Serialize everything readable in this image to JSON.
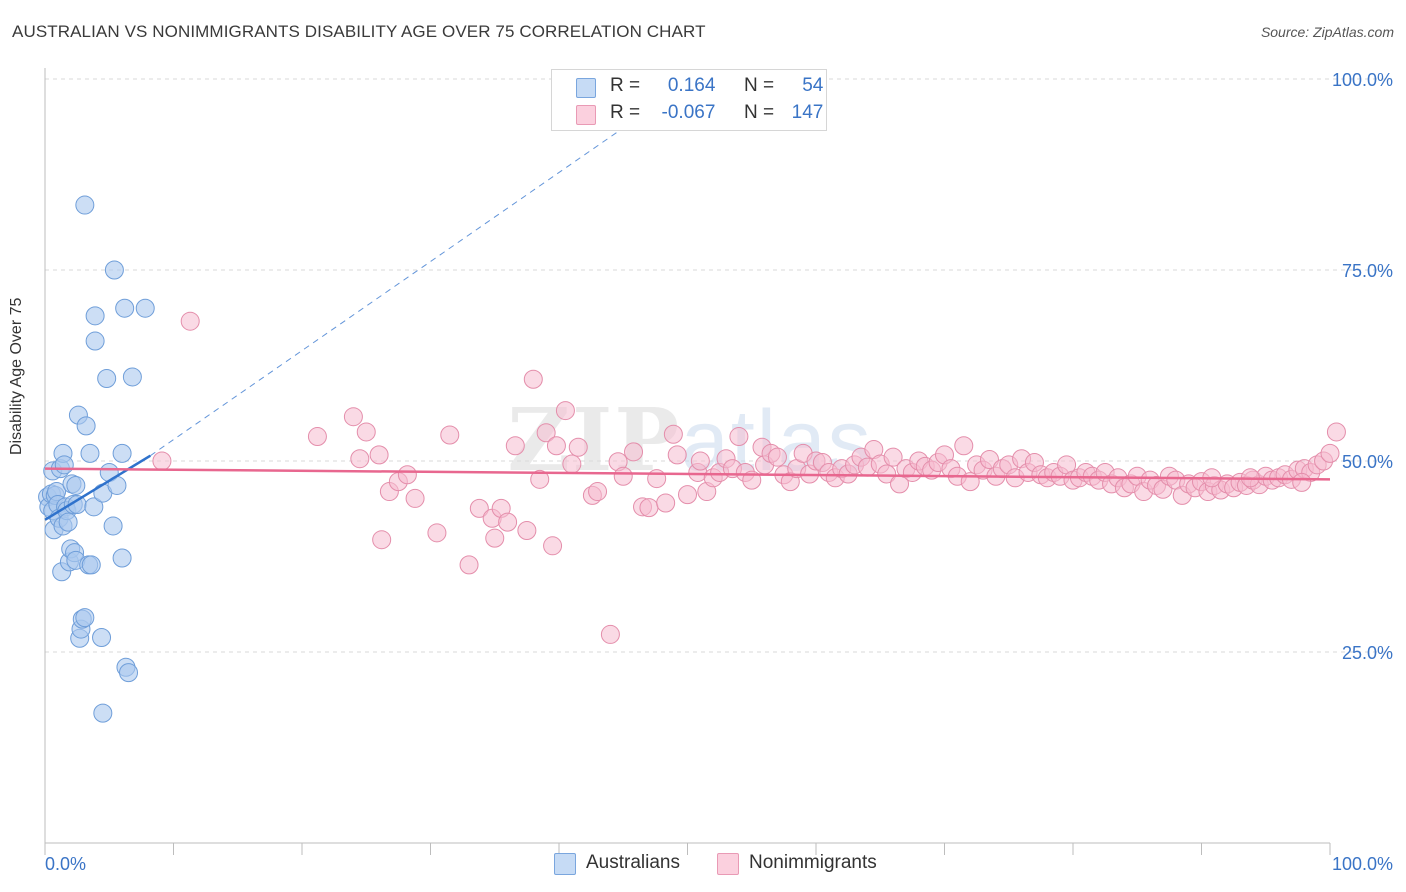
{
  "title": "AUSTRALIAN VS NONIMMIGRANTS DISABILITY AGE OVER 75 CORRELATION CHART",
  "source": "Source: ZipAtlas.com",
  "legend": {
    "rows": [
      {
        "r_label": "R =",
        "r_value": "0.164",
        "n_label": "N =",
        "n_value": "54"
      },
      {
        "r_label": "R =",
        "r_value": "-0.067",
        "n_label": "N =",
        "n_value": "147"
      }
    ]
  },
  "bottom_legend": [
    "Australians",
    "Nonimmigrants"
  ],
  "colors": {
    "blue_fill": "#aac8ef",
    "blue_stroke": "#6f9ed9",
    "blue_line": "#2f72cc",
    "pink_fill": "#f6bcd0",
    "pink_stroke": "#e48eab",
    "pink_line": "#e8678f",
    "tick_text": "#3a74c6"
  },
  "chart_data": {
    "type": "scatter",
    "title": "AUSTRALIAN VS NONIMMIGRANTS DISABILITY AGE OVER 75 CORRELATION CHART",
    "xlabel": "",
    "ylabel": "Disability Age Over 75",
    "xlim": [
      0,
      100
    ],
    "ylim": [
      0,
      100
    ],
    "x_tick_labels": [
      "0.0%",
      "100.0%"
    ],
    "y_tick_labels": [
      "25.0%",
      "50.0%",
      "75.0%",
      "100.0%"
    ],
    "y_ticks": [
      25,
      50,
      75,
      100
    ],
    "grid": "dashed horizontal",
    "watermark": "ZIPatlas",
    "series": [
      {
        "name": "Australians",
        "color": "#aac8ef",
        "trend": {
          "x": [
            0,
            8.2
          ],
          "y": [
            42.3,
            50.7
          ],
          "extended_dashed_to": [
            50.5,
            100
          ]
        },
        "points": [
          [
            0.2,
            45.3
          ],
          [
            0.3,
            44.0
          ],
          [
            0.5,
            45.7
          ],
          [
            0.6,
            48.7
          ],
          [
            0.6,
            43.5
          ],
          [
            0.7,
            41.0
          ],
          [
            0.8,
            45.5
          ],
          [
            0.9,
            46.0
          ],
          [
            1.0,
            44.3
          ],
          [
            1.1,
            42.5
          ],
          [
            1.2,
            49.0
          ],
          [
            1.3,
            35.5
          ],
          [
            1.4,
            51.0
          ],
          [
            1.4,
            41.5
          ],
          [
            1.5,
            49.5
          ],
          [
            1.6,
            44.0
          ],
          [
            1.7,
            43.5
          ],
          [
            1.8,
            42.0
          ],
          [
            1.9,
            36.8
          ],
          [
            2.0,
            38.5
          ],
          [
            2.1,
            47.0
          ],
          [
            2.2,
            44.3
          ],
          [
            2.3,
            38.0
          ],
          [
            2.4,
            46.8
          ],
          [
            2.4,
            37.0
          ],
          [
            2.5,
            44.3
          ],
          [
            2.6,
            56.0
          ],
          [
            2.7,
            26.8
          ],
          [
            2.8,
            28.0
          ],
          [
            2.9,
            29.3
          ],
          [
            3.1,
            29.5
          ],
          [
            3.1,
            83.5
          ],
          [
            3.2,
            54.6
          ],
          [
            3.4,
            36.4
          ],
          [
            3.5,
            51.0
          ],
          [
            3.6,
            36.4
          ],
          [
            3.8,
            44.0
          ],
          [
            3.9,
            69.0
          ],
          [
            3.9,
            65.7
          ],
          [
            4.4,
            26.9
          ],
          [
            4.5,
            45.8
          ],
          [
            4.5,
            17.0
          ],
          [
            4.8,
            60.8
          ],
          [
            5.0,
            48.5
          ],
          [
            5.3,
            41.5
          ],
          [
            5.4,
            75.0
          ],
          [
            5.6,
            46.8
          ],
          [
            6.0,
            51.0
          ],
          [
            6.0,
            37.3
          ],
          [
            6.2,
            70.0
          ],
          [
            6.3,
            23.0
          ],
          [
            6.5,
            22.3
          ],
          [
            6.8,
            61.0
          ],
          [
            7.8,
            70.0
          ]
        ]
      },
      {
        "name": "Nonimmigrants",
        "color": "#f6bcd0",
        "trend": {
          "x": [
            0,
            100
          ],
          "y": [
            49.0,
            47.6
          ]
        },
        "points": [
          [
            9.1,
            50.0
          ],
          [
            11.3,
            68.3
          ],
          [
            21.2,
            53.2
          ],
          [
            24.0,
            55.8
          ],
          [
            24.5,
            50.3
          ],
          [
            25.0,
            53.8
          ],
          [
            26.0,
            50.8
          ],
          [
            26.2,
            39.7
          ],
          [
            26.8,
            46.0
          ],
          [
            27.5,
            47.3
          ],
          [
            28.2,
            48.2
          ],
          [
            28.8,
            45.1
          ],
          [
            30.5,
            40.6
          ],
          [
            31.5,
            53.4
          ],
          [
            33.0,
            36.4
          ],
          [
            33.8,
            43.8
          ],
          [
            34.8,
            42.5
          ],
          [
            35.0,
            39.9
          ],
          [
            35.5,
            43.8
          ],
          [
            36.0,
            42.0
          ],
          [
            36.6,
            52.0
          ],
          [
            37.5,
            40.9
          ],
          [
            38.0,
            60.7
          ],
          [
            38.5,
            47.6
          ],
          [
            39.0,
            53.7
          ],
          [
            39.5,
            38.9
          ],
          [
            39.8,
            52.0
          ],
          [
            40.5,
            56.6
          ],
          [
            41.0,
            49.6
          ],
          [
            41.5,
            51.8
          ],
          [
            42.6,
            45.5
          ],
          [
            43.0,
            46.0
          ],
          [
            44.0,
            27.3
          ],
          [
            44.6,
            49.9
          ],
          [
            45.0,
            48.0
          ],
          [
            45.8,
            51.2
          ],
          [
            46.5,
            44.0
          ],
          [
            47.0,
            43.9
          ],
          [
            47.6,
            47.7
          ],
          [
            48.3,
            44.5
          ],
          [
            48.9,
            53.5
          ],
          [
            49.2,
            50.8
          ],
          [
            50.0,
            45.6
          ],
          [
            50.8,
            48.5
          ],
          [
            51.0,
            50.0
          ],
          [
            51.5,
            46.0
          ],
          [
            52.0,
            47.8
          ],
          [
            52.5,
            48.5
          ],
          [
            53.0,
            50.3
          ],
          [
            53.5,
            49.0
          ],
          [
            54.0,
            53.2
          ],
          [
            54.5,
            48.5
          ],
          [
            55.0,
            47.5
          ],
          [
            55.8,
            51.8
          ],
          [
            56.0,
            49.5
          ],
          [
            56.5,
            51.0
          ],
          [
            57.0,
            50.5
          ],
          [
            57.5,
            48.2
          ],
          [
            58.0,
            47.3
          ],
          [
            58.5,
            49.0
          ],
          [
            59.0,
            51.0
          ],
          [
            59.5,
            48.3
          ],
          [
            60.0,
            50.0
          ],
          [
            60.5,
            49.8
          ],
          [
            61.0,
            48.5
          ],
          [
            61.5,
            47.8
          ],
          [
            62.0,
            49.0
          ],
          [
            62.5,
            48.3
          ],
          [
            63.0,
            49.5
          ],
          [
            63.5,
            50.5
          ],
          [
            64.0,
            49.2
          ],
          [
            64.5,
            51.5
          ],
          [
            65.0,
            49.6
          ],
          [
            65.5,
            48.3
          ],
          [
            66.0,
            50.5
          ],
          [
            66.5,
            47.0
          ],
          [
            67.0,
            49.0
          ],
          [
            67.5,
            48.5
          ],
          [
            68.0,
            50.0
          ],
          [
            68.5,
            49.3
          ],
          [
            69.0,
            48.8
          ],
          [
            69.5,
            49.8
          ],
          [
            70.0,
            50.8
          ],
          [
            70.5,
            49.0
          ],
          [
            71.0,
            48.0
          ],
          [
            71.5,
            52.0
          ],
          [
            72.0,
            47.3
          ],
          [
            72.5,
            49.5
          ],
          [
            73.0,
            48.8
          ],
          [
            73.5,
            50.2
          ],
          [
            74.0,
            48.0
          ],
          [
            74.5,
            49.0
          ],
          [
            75.0,
            49.5
          ],
          [
            75.5,
            47.8
          ],
          [
            76.0,
            50.3
          ],
          [
            76.5,
            48.5
          ],
          [
            77.0,
            49.8
          ],
          [
            77.5,
            48.2
          ],
          [
            78.0,
            47.8
          ],
          [
            78.5,
            48.5
          ],
          [
            79.0,
            48.0
          ],
          [
            79.5,
            49.5
          ],
          [
            80.0,
            47.5
          ],
          [
            80.5,
            47.8
          ],
          [
            81.0,
            48.5
          ],
          [
            81.5,
            48.0
          ],
          [
            82.0,
            47.5
          ],
          [
            82.5,
            48.5
          ],
          [
            83.0,
            47.0
          ],
          [
            83.5,
            47.8
          ],
          [
            84.0,
            46.5
          ],
          [
            84.5,
            47.0
          ],
          [
            85.0,
            48.0
          ],
          [
            85.5,
            46.0
          ],
          [
            86.0,
            47.5
          ],
          [
            86.5,
            46.8
          ],
          [
            87.0,
            46.3
          ],
          [
            87.5,
            48.0
          ],
          [
            88.0,
            47.5
          ],
          [
            88.5,
            45.5
          ],
          [
            89.0,
            47.0
          ],
          [
            89.5,
            46.5
          ],
          [
            90.0,
            47.3
          ],
          [
            90.5,
            46.0
          ],
          [
            91.0,
            46.8
          ],
          [
            91.5,
            46.2
          ],
          [
            92.0,
            47.0
          ],
          [
            92.5,
            46.5
          ],
          [
            93.0,
            47.2
          ],
          [
            93.5,
            46.8
          ],
          [
            94.0,
            47.5
          ],
          [
            94.5,
            46.9
          ],
          [
            95.0,
            48.0
          ],
          [
            95.5,
            47.5
          ],
          [
            96.0,
            47.8
          ],
          [
            96.5,
            48.2
          ],
          [
            97.0,
            47.6
          ],
          [
            97.5,
            48.8
          ],
          [
            98.0,
            49.0
          ],
          [
            98.5,
            48.5
          ],
          [
            99.0,
            49.5
          ],
          [
            99.5,
            50.0
          ],
          [
            100.0,
            51.0
          ],
          [
            100.5,
            53.8
          ],
          [
            97.8,
            47.2
          ],
          [
            93.8,
            47.8
          ],
          [
            90.8,
            47.8
          ]
        ]
      }
    ]
  }
}
